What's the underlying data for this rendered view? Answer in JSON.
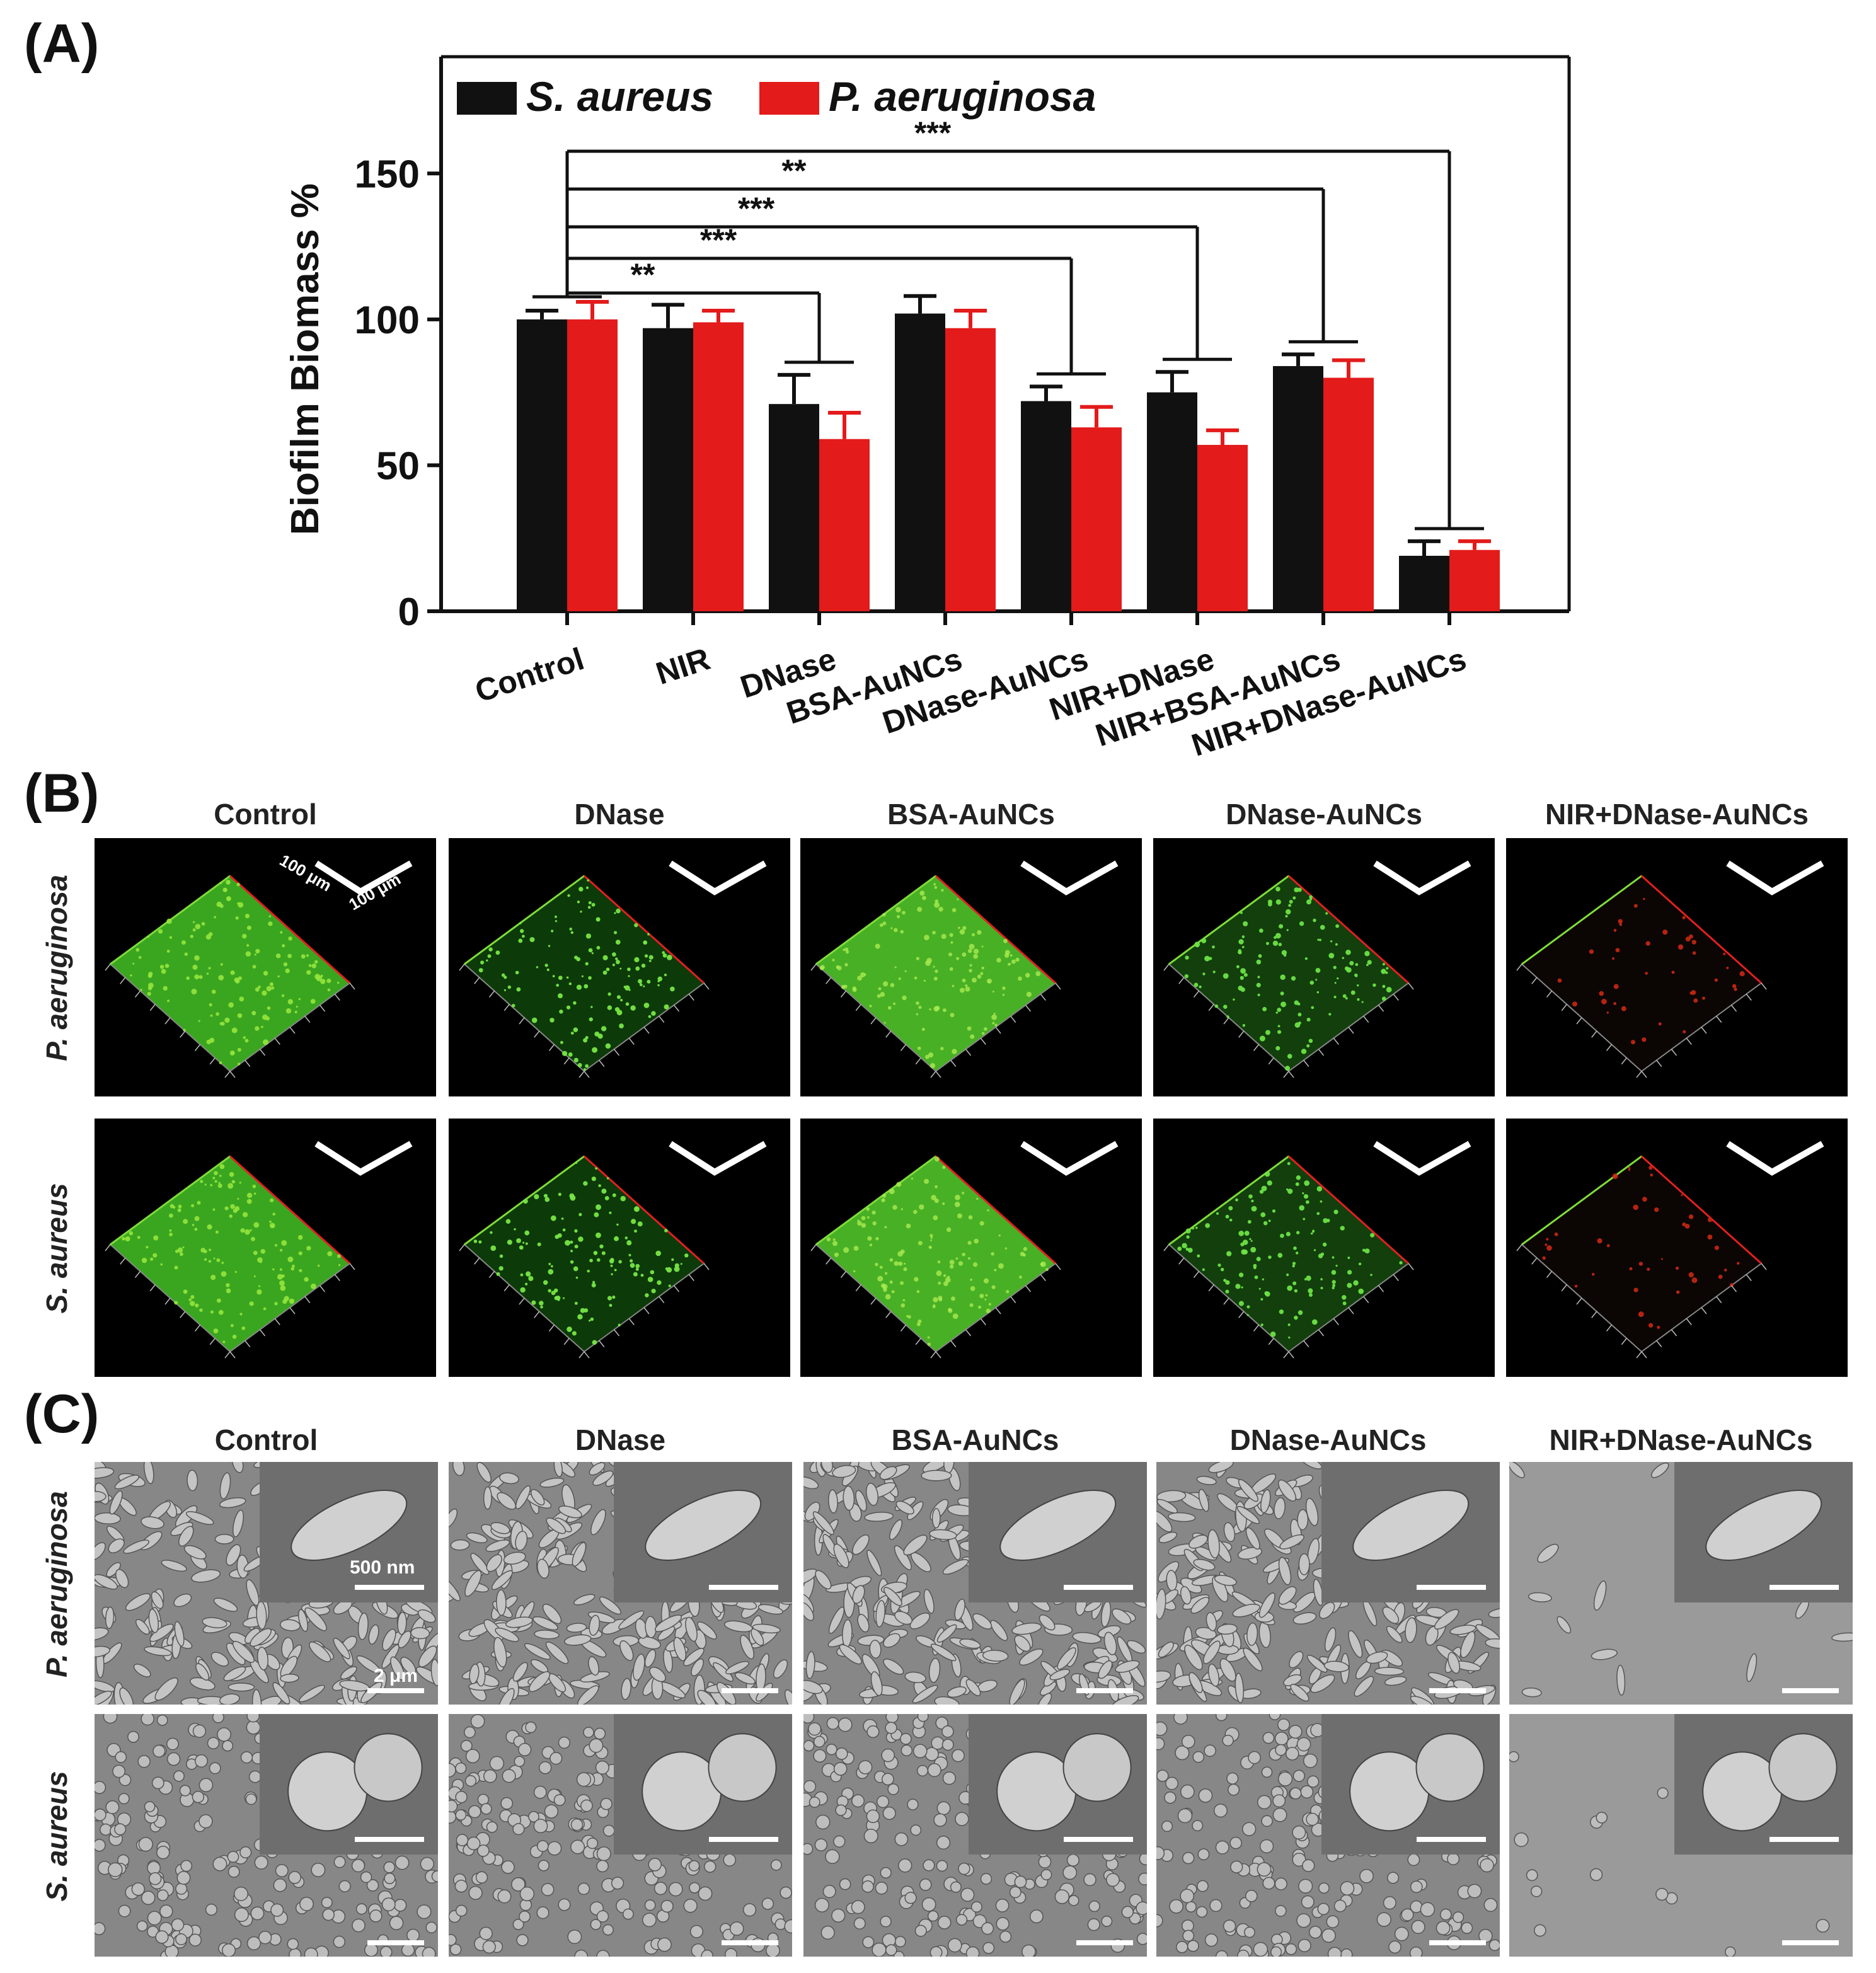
{
  "panels": {
    "a_label": "(A)",
    "b_label": "(B)",
    "c_label": "(C)"
  },
  "chart_data": {
    "type": "bar",
    "categories": [
      "Control",
      "NIR",
      "DNase",
      "BSA-AuNCs",
      "DNase-AuNCs",
      "NIR+DNase",
      "NIR+BSA-AuNCs",
      "NIR+DNase-AuNCs"
    ],
    "series": [
      {
        "name": "S. aureus",
        "color": "#111111",
        "values": [
          100,
          97,
          71,
          102,
          72,
          75,
          84,
          19
        ],
        "errors": [
          3,
          8,
          10,
          6,
          5,
          7,
          4,
          5
        ]
      },
      {
        "name": "P. aeruginosa",
        "color": "#e31b1b",
        "values": [
          100,
          99,
          59,
          97,
          63,
          57,
          80,
          21
        ],
        "errors": [
          6,
          4,
          9,
          6,
          7,
          5,
          6,
          3
        ]
      }
    ],
    "ylabel": "Biofilm Biomass %",
    "xlabel": "",
    "ylim": [
      0,
      190
    ],
    "yticks": [
      0,
      50,
      100,
      150
    ],
    "legend_position": "top-left",
    "significance": [
      {
        "from": 0,
        "to": 2,
        "label": "**"
      },
      {
        "from": 0,
        "to": 4,
        "label": "***"
      },
      {
        "from": 0,
        "to": 5,
        "label": "***"
      },
      {
        "from": 0,
        "to": 6,
        "label": "**"
      },
      {
        "from": 0,
        "to": 7,
        "label": "***"
      }
    ]
  },
  "panel_b": {
    "columns": [
      "Control",
      "DNase",
      "BSA-AuNCs",
      "DNase-AuNCs",
      "NIR+DNase-AuNCs"
    ],
    "rows": [
      "P. aeruginosa",
      "S. aureus"
    ],
    "scale_x": "100 μm",
    "scale_y": "100 μm"
  },
  "panel_c": {
    "columns": [
      "Control",
      "DNase",
      "BSA-AuNCs",
      "DNase-AuNCs",
      "NIR+DNase-AuNCs"
    ],
    "rows": [
      "P. aeruginosa",
      "S. aureus"
    ],
    "scale_inset": "500 nm",
    "scale_main": "2 μm"
  }
}
